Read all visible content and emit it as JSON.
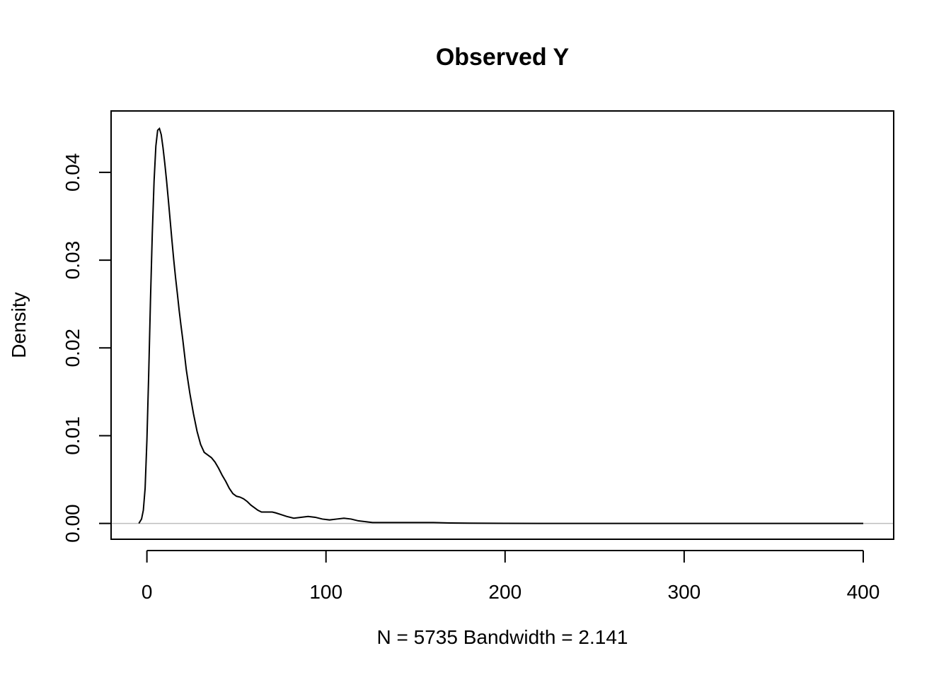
{
  "chart_data": {
    "type": "line",
    "title": "Observed Y",
    "xlabel": "N = 5735   Bandwidth = 2.141",
    "ylabel": "Density",
    "xlim": [
      -20,
      417
    ],
    "ylim": [
      -0.0018,
      0.047
    ],
    "x_ticks": [
      0,
      100,
      200,
      300,
      400
    ],
    "x_tick_labels": [
      "0",
      "100",
      "200",
      "300",
      "400"
    ],
    "y_ticks": [
      0.0,
      0.01,
      0.02,
      0.03,
      0.04
    ],
    "y_tick_labels": [
      "0.00",
      "0.01",
      "0.02",
      "0.03",
      "0.04"
    ],
    "grid": false,
    "baseline": 0,
    "series": [
      {
        "x": [
          -4.5,
          -3,
          -2,
          -1,
          0,
          1,
          2,
          3,
          4,
          5,
          6,
          7,
          8,
          9,
          10,
          11,
          12,
          13,
          14,
          15,
          16,
          17,
          18,
          19,
          20,
          22,
          24,
          26,
          28,
          30,
          32,
          34,
          36,
          38,
          40,
          42,
          44,
          46,
          48,
          50,
          52,
          54,
          56,
          58,
          60,
          62,
          64,
          66,
          68,
          70,
          72,
          75,
          78,
          82,
          86,
          90,
          94,
          98,
          102,
          106,
          110,
          114,
          118,
          122,
          126,
          130,
          135,
          140,
          150,
          160,
          170,
          180,
          190,
          200,
          250,
          300,
          350,
          400
        ],
        "y": [
          0.0,
          0.0005,
          0.0015,
          0.004,
          0.0095,
          0.017,
          0.0255,
          0.033,
          0.039,
          0.043,
          0.0448,
          0.045,
          0.0443,
          0.0428,
          0.041,
          0.039,
          0.0368,
          0.0345,
          0.0322,
          0.03,
          0.028,
          0.0262,
          0.0243,
          0.0226,
          0.021,
          0.0175,
          0.0148,
          0.0125,
          0.0105,
          0.009,
          0.0081,
          0.0078,
          0.0075,
          0.007,
          0.0063,
          0.0055,
          0.0048,
          0.004,
          0.0034,
          0.0031,
          0.003,
          0.0028,
          0.0025,
          0.0021,
          0.0018,
          0.0015,
          0.0013,
          0.0013,
          0.0013,
          0.0013,
          0.0012,
          0.001,
          0.0008,
          0.0006,
          0.0007,
          0.0008,
          0.0007,
          0.0005,
          0.0004,
          0.0005,
          0.0006,
          0.0005,
          0.0003,
          0.0002,
          0.0001,
          0.0001,
          0.0001,
          0.0001,
          0.0001,
          0.0001,
          5e-05,
          3e-05,
          2e-05,
          1e-05,
          0.0,
          0.0,
          0.0,
          0.0
        ]
      }
    ]
  }
}
